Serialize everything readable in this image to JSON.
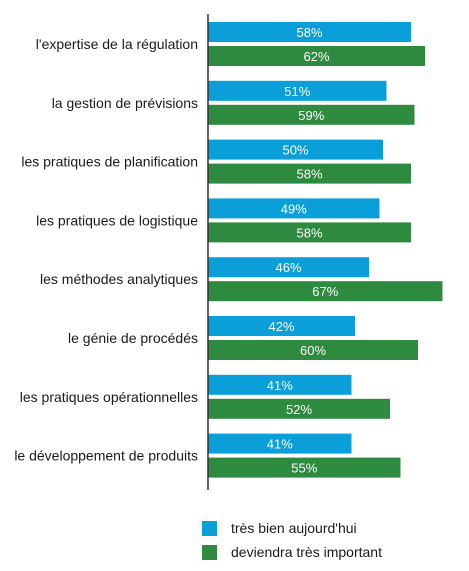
{
  "chart_data": {
    "type": "bar",
    "orientation": "horizontal",
    "categories": [
      "l'expertise de la régulation",
      "la gestion de prévisions",
      "les pratiques de planification",
      "les pratiques de logistique",
      "les méthodes analytiques",
      "le génie de procédés",
      "les pratiques opérationnelles",
      "le développement de produits"
    ],
    "series": [
      {
        "name": "très bien aujourd'hui",
        "color": "#0a9fd8",
        "values": [
          58,
          51,
          50,
          49,
          46,
          42,
          41,
          41
        ],
        "labels": [
          "58%",
          "51%",
          "50%",
          "49%",
          "46%",
          "42%",
          "41%",
          "41%"
        ]
      },
      {
        "name": "deviendra très important",
        "color": "#2e8a3e",
        "values": [
          62,
          59,
          58,
          58,
          67,
          60,
          52,
          55
        ],
        "labels": [
          "62%",
          "59%",
          "58%",
          "58%",
          "67%",
          "60%",
          "52%",
          "55%"
        ]
      }
    ],
    "xlim": [
      0,
      68
    ],
    "axis_color": "#333333",
    "legend_position": "bottom"
  }
}
